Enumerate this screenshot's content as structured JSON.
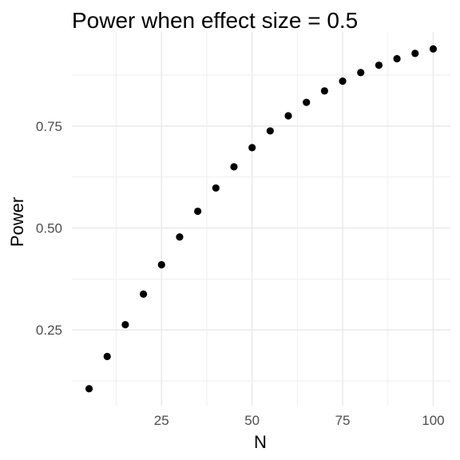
{
  "chart_data": {
    "type": "scatter",
    "title": "Power when effect size = 0.5",
    "xlabel": "N",
    "ylabel": "Power",
    "x": [
      5,
      10,
      15,
      20,
      25,
      30,
      35,
      40,
      45,
      50,
      55,
      60,
      65,
      70,
      75,
      80,
      85,
      90,
      95,
      100
    ],
    "y": [
      0.106,
      0.185,
      0.263,
      0.338,
      0.41,
      0.478,
      0.541,
      0.598,
      0.65,
      0.697,
      0.738,
      0.775,
      0.808,
      0.836,
      0.86,
      0.881,
      0.899,
      0.915,
      0.928,
      0.939
    ],
    "xlim": [
      0.25,
      104.75
    ],
    "ylim": [
      0.0644,
      0.9806
    ],
    "xticks": [
      25,
      50,
      75,
      100
    ],
    "xtick_labels": [
      "25",
      "50",
      "75",
      "100"
    ],
    "yticks": [
      0.25,
      0.5,
      0.75
    ],
    "ytick_labels": [
      "0.25",
      "0.50",
      "0.75"
    ],
    "grid": true,
    "point_color": "#000000",
    "grid_color": "#ebebeb"
  }
}
